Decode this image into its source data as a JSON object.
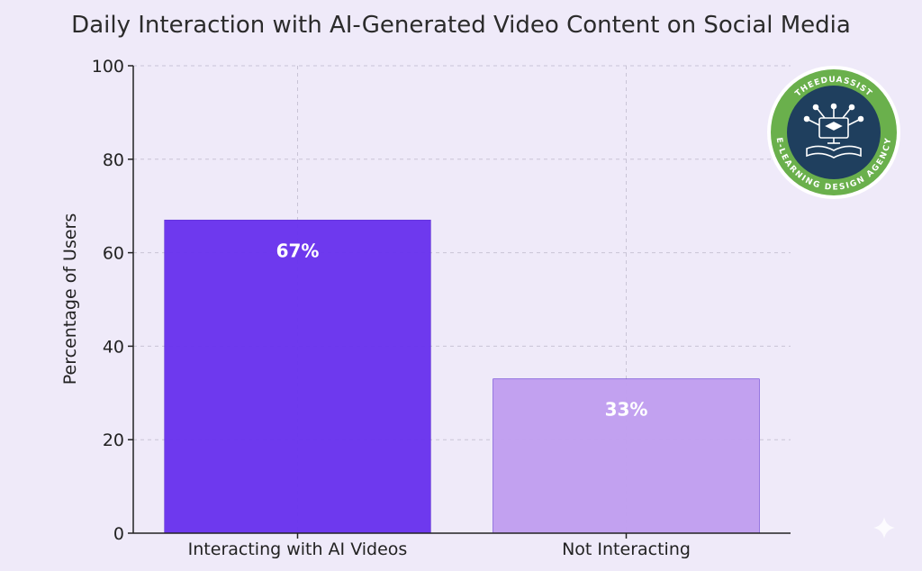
{
  "chart_data": {
    "type": "bar",
    "title": "Daily Interaction with AI-Generated Video Content on Social Media",
    "xlabel": "",
    "ylabel": "Percentage of Users",
    "categories": [
      "Interacting with AI Videos",
      "Not Interacting"
    ],
    "values": [
      67,
      33
    ],
    "data_labels": [
      "67%",
      "33%"
    ],
    "bar_colors": [
      "#6a34ee",
      "#c19ff0"
    ],
    "ylim": [
      0,
      100
    ],
    "yticks": [
      0,
      20,
      40,
      60,
      80,
      100
    ],
    "grid": true
  },
  "badge": {
    "top_text": "THEEDUASSIST",
    "bottom_text": "E-LEARNING DESIGN AGENCY",
    "ring_color": "#6ab04c",
    "inner_color": "#1f3f5e"
  }
}
